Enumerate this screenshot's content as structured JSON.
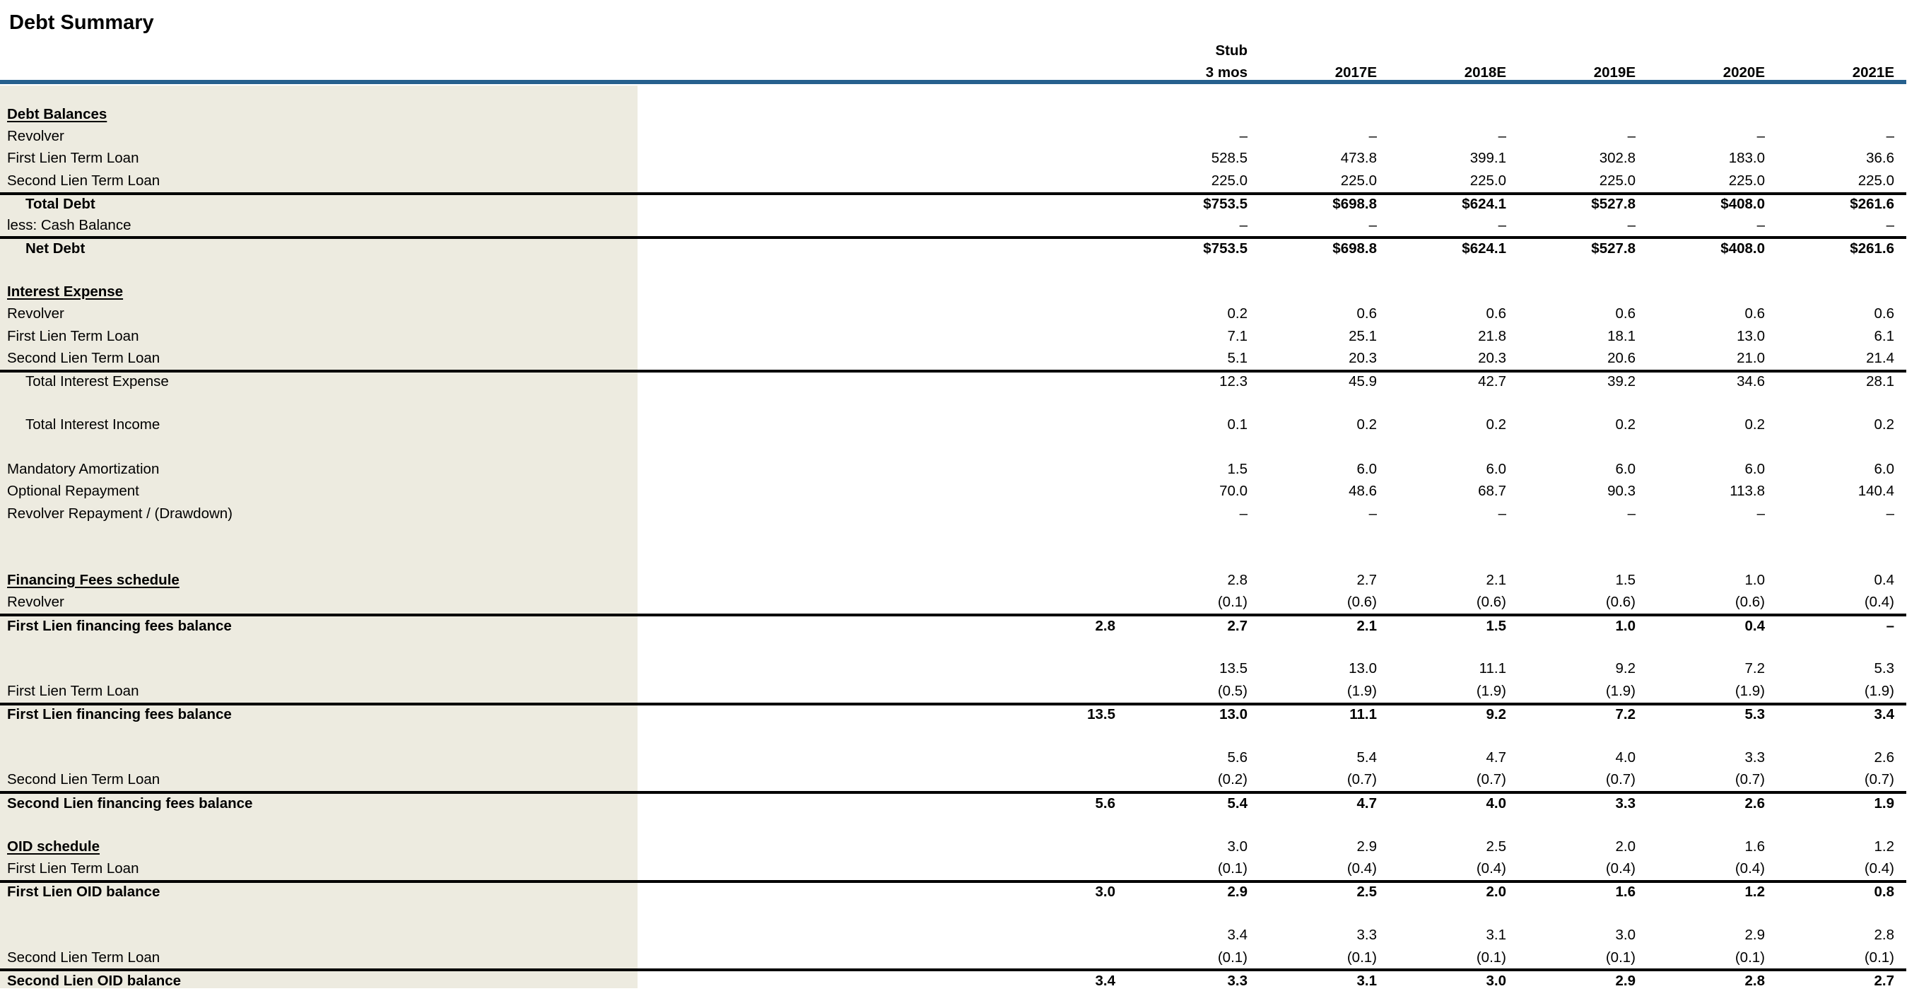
{
  "title": "Debt Summary",
  "colors": {
    "accent_blue": "#26608E",
    "label_band_bg": "#EDEBE0",
    "rule_black": "#000000"
  },
  "columns": {
    "stub_line1": "Stub",
    "stub_line2": "3 mos",
    "years": [
      "2017E",
      "2018E",
      "2019E",
      "2020E",
      "2021E"
    ]
  },
  "table": {
    "rows": [
      {
        "label": "Debt Balances",
        "style": "section",
        "border_top": false,
        "extra": "",
        "values": [
          "",
          "",
          "",
          "",
          "",
          ""
        ]
      },
      {
        "label": "Revolver",
        "style": "normal",
        "border_top": false,
        "extra": "",
        "values": [
          "–",
          "–",
          "–",
          "–",
          "–",
          "–"
        ]
      },
      {
        "label": "First Lien Term Loan",
        "style": "normal",
        "border_top": false,
        "extra": "",
        "values": [
          "528.5",
          "473.8",
          "399.1",
          "302.8",
          "183.0",
          "36.6"
        ]
      },
      {
        "label": "Second Lien Term Loan",
        "style": "normal",
        "border_top": false,
        "extra": "",
        "values": [
          "225.0",
          "225.0",
          "225.0",
          "225.0",
          "225.0",
          "225.0"
        ]
      },
      {
        "label": "Total Debt",
        "style": "total",
        "border_top": true,
        "extra": "",
        "values": [
          "$753.5",
          "$698.8",
          "$624.1",
          "$527.8",
          "$408.0",
          "$261.6"
        ]
      },
      {
        "label": "less: Cash Balance",
        "style": "normal",
        "border_top": false,
        "extra": "",
        "values": [
          "–",
          "–",
          "–",
          "–",
          "–",
          "–"
        ]
      },
      {
        "label": "Net Debt",
        "style": "total",
        "border_top": true,
        "extra": "",
        "values": [
          "$753.5",
          "$698.8",
          "$624.1",
          "$527.8",
          "$408.0",
          "$261.6"
        ]
      },
      {
        "label": "",
        "style": "spacer",
        "border_top": false,
        "extra": "",
        "values": [
          "",
          "",
          "",
          "",
          "",
          ""
        ]
      },
      {
        "label": "Interest Expense",
        "style": "section",
        "border_top": false,
        "extra": "",
        "values": [
          "",
          "",
          "",
          "",
          "",
          ""
        ]
      },
      {
        "label": "Revolver",
        "style": "normal",
        "border_top": false,
        "extra": "",
        "values": [
          "0.2",
          "0.6",
          "0.6",
          "0.6",
          "0.6",
          "0.6"
        ]
      },
      {
        "label": "First Lien Term Loan",
        "style": "normal",
        "border_top": false,
        "extra": "",
        "values": [
          "7.1",
          "25.1",
          "21.8",
          "18.1",
          "13.0",
          "6.1"
        ]
      },
      {
        "label": "Second Lien Term Loan",
        "style": "normal",
        "border_top": false,
        "extra": "",
        "values": [
          "5.1",
          "20.3",
          "20.3",
          "20.6",
          "21.0",
          "21.4"
        ]
      },
      {
        "label": "Total Interest Expense",
        "style": "subtotal",
        "border_top": true,
        "extra": "",
        "values": [
          "12.3",
          "45.9",
          "42.7",
          "39.2",
          "34.6",
          "28.1"
        ]
      },
      {
        "label": "",
        "style": "spacer",
        "border_top": false,
        "extra": "",
        "values": [
          "",
          "",
          "",
          "",
          "",
          ""
        ]
      },
      {
        "label": "Total Interest Income",
        "style": "subtotal",
        "border_top": false,
        "extra": "",
        "values": [
          "0.1",
          "0.2",
          "0.2",
          "0.2",
          "0.2",
          "0.2"
        ]
      },
      {
        "label": "",
        "style": "spacer",
        "border_top": false,
        "extra": "",
        "values": [
          "",
          "",
          "",
          "",
          "",
          ""
        ]
      },
      {
        "label": "Mandatory Amortization",
        "style": "normal",
        "border_top": false,
        "extra": "",
        "values": [
          "1.5",
          "6.0",
          "6.0",
          "6.0",
          "6.0",
          "6.0"
        ]
      },
      {
        "label": "Optional Repayment",
        "style": "normal",
        "border_top": false,
        "extra": "",
        "values": [
          "70.0",
          "48.6",
          "68.7",
          "90.3",
          "113.8",
          "140.4"
        ]
      },
      {
        "label": "Revolver Repayment / (Drawdown)",
        "style": "normal",
        "border_top": false,
        "extra": "",
        "values": [
          "–",
          "–",
          "–",
          "–",
          "–",
          "–"
        ]
      },
      {
        "label": "",
        "style": "spacer",
        "border_top": false,
        "extra": "",
        "values": [
          "",
          "",
          "",
          "",
          "",
          ""
        ]
      },
      {
        "label": "",
        "style": "spacer",
        "border_top": false,
        "extra": "",
        "values": [
          "",
          "",
          "",
          "",
          "",
          ""
        ]
      },
      {
        "label": "Financing Fees schedule",
        "style": "section",
        "border_top": false,
        "extra": "",
        "values": [
          "2.8",
          "2.7",
          "2.1",
          "1.5",
          "1.0",
          "0.4"
        ]
      },
      {
        "label": "Revolver",
        "style": "normal",
        "border_top": false,
        "extra": "",
        "values": [
          "(0.1)",
          "(0.6)",
          "(0.6)",
          "(0.6)",
          "(0.6)",
          "(0.4)"
        ]
      },
      {
        "label": "First Lien financing fees balance",
        "style": "balance",
        "border_top": true,
        "extra": "2.8",
        "values": [
          "2.7",
          "2.1",
          "1.5",
          "1.0",
          "0.4",
          "–"
        ]
      },
      {
        "label": "",
        "style": "spacer",
        "border_top": false,
        "extra": "",
        "values": [
          "",
          "",
          "",
          "",
          "",
          ""
        ]
      },
      {
        "label": "",
        "style": "normal",
        "border_top": false,
        "extra": "",
        "values": [
          "13.5",
          "13.0",
          "11.1",
          "9.2",
          "7.2",
          "5.3"
        ]
      },
      {
        "label": "First Lien Term Loan",
        "style": "normal",
        "border_top": false,
        "extra": "",
        "values": [
          "(0.5)",
          "(1.9)",
          "(1.9)",
          "(1.9)",
          "(1.9)",
          "(1.9)"
        ]
      },
      {
        "label": "First Lien financing fees balance",
        "style": "balance",
        "border_top": true,
        "extra": "13.5",
        "values": [
          "13.0",
          "11.1",
          "9.2",
          "7.2",
          "5.3",
          "3.4"
        ]
      },
      {
        "label": "",
        "style": "spacer",
        "border_top": false,
        "extra": "",
        "values": [
          "",
          "",
          "",
          "",
          "",
          ""
        ]
      },
      {
        "label": "",
        "style": "normal",
        "border_top": false,
        "extra": "",
        "values": [
          "5.6",
          "5.4",
          "4.7",
          "4.0",
          "3.3",
          "2.6"
        ]
      },
      {
        "label": "Second Lien Term Loan",
        "style": "normal",
        "border_top": false,
        "extra": "",
        "values": [
          "(0.2)",
          "(0.7)",
          "(0.7)",
          "(0.7)",
          "(0.7)",
          "(0.7)"
        ]
      },
      {
        "label": "Second Lien financing fees balance",
        "style": "balance",
        "border_top": true,
        "extra": "5.6",
        "values": [
          "5.4",
          "4.7",
          "4.0",
          "3.3",
          "2.6",
          "1.9"
        ]
      },
      {
        "label": "",
        "style": "spacer",
        "border_top": false,
        "extra": "",
        "values": [
          "",
          "",
          "",
          "",
          "",
          ""
        ]
      },
      {
        "label": "OID schedule",
        "style": "section",
        "border_top": false,
        "extra": "",
        "values": [
          "3.0",
          "2.9",
          "2.5",
          "2.0",
          "1.6",
          "1.2"
        ]
      },
      {
        "label": "First Lien Term Loan",
        "style": "normal",
        "border_top": false,
        "extra": "",
        "values": [
          "(0.1)",
          "(0.4)",
          "(0.4)",
          "(0.4)",
          "(0.4)",
          "(0.4)"
        ]
      },
      {
        "label": "First Lien OID balance",
        "style": "balance",
        "border_top": true,
        "extra": "3.0",
        "values": [
          "2.9",
          "2.5",
          "2.0",
          "1.6",
          "1.2",
          "0.8"
        ]
      },
      {
        "label": "",
        "style": "spacer",
        "border_top": false,
        "extra": "",
        "values": [
          "",
          "",
          "",
          "",
          "",
          ""
        ]
      },
      {
        "label": "",
        "style": "normal",
        "border_top": false,
        "extra": "",
        "values": [
          "3.4",
          "3.3",
          "3.1",
          "3.0",
          "2.9",
          "2.8"
        ]
      },
      {
        "label": "Second Lien Term Loan",
        "style": "normal",
        "border_top": false,
        "extra": "",
        "values": [
          "(0.1)",
          "(0.1)",
          "(0.1)",
          "(0.1)",
          "(0.1)",
          "(0.1)"
        ]
      },
      {
        "label": "Second Lien OID balance",
        "style": "balance",
        "border_top": true,
        "extra": "3.4",
        "values": [
          "3.3",
          "3.1",
          "3.0",
          "2.9",
          "2.8",
          "2.7"
        ]
      }
    ]
  }
}
